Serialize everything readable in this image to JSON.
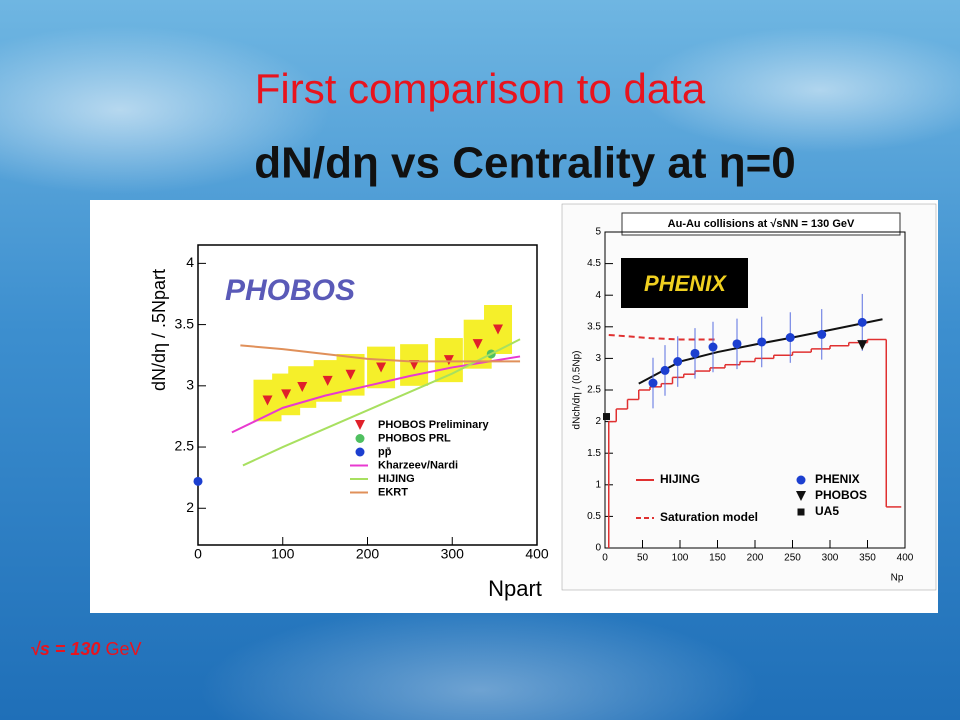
{
  "slide": {
    "title": "First comparison to data",
    "subtitle": "dN/dη  vs Centrality at η=0",
    "note": {
      "energy": "√s = 130",
      "unit": "GeV"
    }
  },
  "chart_data": [
    {
      "type": "scatter",
      "logo": "PHOBOS",
      "xlabel": "Npart",
      "ylabel": "dN/dη / .5Npart",
      "xlim": [
        0,
        400
      ],
      "xticks": [
        0,
        100,
        200,
        300,
        400
      ],
      "ylim": [
        1.7,
        4.15
      ],
      "yticks": [
        2,
        2.5,
        3,
        3.5,
        4
      ],
      "series": [
        {
          "name": "PHOBOS Preliminary",
          "kind": "scatter",
          "marker": "triangle",
          "color": "#e0202a",
          "error_color": "#f5ef2a",
          "x": [
            82,
            104,
            123,
            153,
            180,
            216,
            255,
            296,
            330,
            354
          ],
          "values": [
            2.88,
            2.93,
            2.99,
            3.04,
            3.09,
            3.15,
            3.17,
            3.21,
            3.34,
            3.46
          ],
          "errors": [
            0.17,
            0.17,
            0.17,
            0.17,
            0.17,
            0.17,
            0.17,
            0.18,
            0.2,
            0.2
          ]
        },
        {
          "name": "PHOBOS PRL",
          "kind": "scatter",
          "marker": "circle",
          "color": "#4fc060",
          "x": [
            346
          ],
          "values": [
            3.26
          ]
        },
        {
          "name": "pp̄",
          "kind": "scatter",
          "marker": "circle",
          "color": "#1c3fd0",
          "x": [
            0
          ],
          "values": [
            2.22
          ]
        },
        {
          "name": "Kharzeev/Nardi",
          "kind": "line",
          "color": "#e83ad0",
          "x": [
            40,
            100,
            150,
            200,
            250,
            300,
            380
          ],
          "values": [
            2.62,
            2.82,
            2.92,
            3.0,
            3.08,
            3.15,
            3.24
          ]
        },
        {
          "name": "HIJING",
          "kind": "line",
          "color": "#a8e060",
          "x": [
            53,
            100,
            150,
            200,
            250,
            300,
            380
          ],
          "values": [
            2.35,
            2.5,
            2.65,
            2.8,
            2.95,
            3.1,
            3.38
          ]
        },
        {
          "name": "EKRT",
          "kind": "line",
          "color": "#e0905a",
          "x": [
            50,
            100,
            150,
            200,
            250,
            300,
            380
          ],
          "values": [
            3.33,
            3.3,
            3.26,
            3.22,
            3.2,
            3.2,
            3.2
          ]
        }
      ]
    },
    {
      "type": "scatter",
      "logo": "PHENIX",
      "header": "Au-Au collisions at √sNN = 130 GeV",
      "xlabel": "Np",
      "ylabel": "dNch/dη / (0.5Np)",
      "xlim": [
        0,
        400
      ],
      "xticks": [
        0,
        50,
        100,
        150,
        200,
        250,
        300,
        350,
        400
      ],
      "ylim": [
        0,
        5
      ],
      "yticks": [
        0,
        0.5,
        1,
        1.5,
        2,
        2.5,
        3,
        3.5,
        4,
        4.5,
        5
      ],
      "series": [
        {
          "name": "HIJING",
          "kind": "step",
          "color": "#e03030",
          "bins": [
            5,
            15,
            30,
            45,
            60,
            75,
            90,
            105,
            120,
            140,
            160,
            180,
            200,
            225,
            250,
            275,
            300,
            325,
            350,
            375,
            395
          ],
          "values": [
            2.0,
            2.2,
            2.35,
            2.5,
            2.55,
            2.6,
            2.7,
            2.75,
            2.8,
            2.85,
            2.9,
            2.95,
            3.0,
            3.05,
            3.1,
            3.15,
            3.2,
            3.25,
            3.3,
            0.65
          ]
        },
        {
          "name": "Saturation model",
          "kind": "line",
          "dash": true,
          "color": "#e03030",
          "x": [
            5,
            30,
            60,
            100,
            150
          ],
          "values": [
            3.37,
            3.35,
            3.32,
            3.3,
            3.3
          ]
        },
        {
          "kind": "line",
          "color": "#111111",
          "x": [
            45,
            100,
            150,
            200,
            250,
            300,
            370
          ],
          "values": [
            2.6,
            2.95,
            3.1,
            3.22,
            3.33,
            3.45,
            3.62
          ]
        },
        {
          "name": "PHENIX",
          "kind": "scatter",
          "marker": "circle",
          "color": "#1c3fd0",
          "error_color": "#5a6fe0",
          "x": [
            64,
            80,
            97,
            120,
            144,
            176,
            209,
            247,
            289,
            343
          ],
          "values": [
            2.61,
            2.81,
            2.95,
            3.08,
            3.18,
            3.23,
            3.26,
            3.33,
            3.38,
            3.57
          ],
          "errors": [
            0.4,
            0.4,
            0.4,
            0.4,
            0.4,
            0.4,
            0.4,
            0.4,
            0.4,
            0.45
          ]
        },
        {
          "name": "PHOBOS",
          "kind": "scatter",
          "marker": "triangle",
          "color": "#111111",
          "x": [
            343
          ],
          "values": [
            3.21
          ]
        },
        {
          "name": "UA5",
          "kind": "scatter",
          "marker": "square",
          "color": "#111111",
          "x": [
            2
          ],
          "values": [
            2.08
          ]
        }
      ]
    }
  ]
}
